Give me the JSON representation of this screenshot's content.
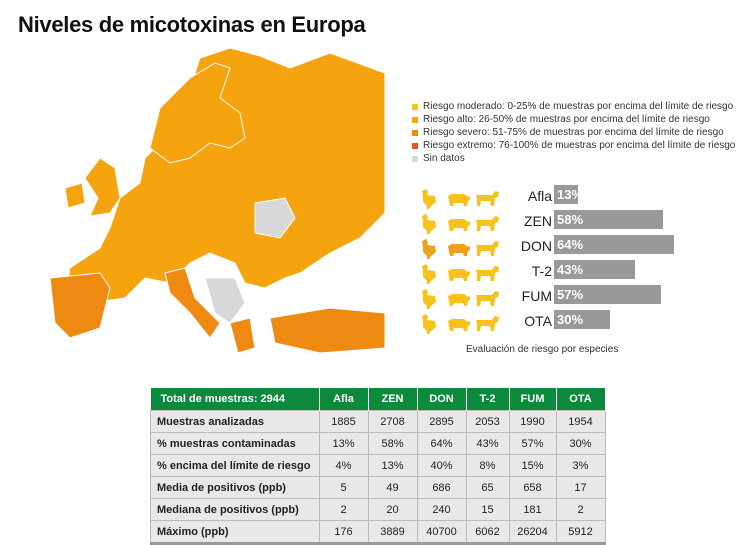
{
  "title": "Niveles de micotoxinas en Europa",
  "colors": {
    "moderate": "#f5c518",
    "high": "#f5a30f",
    "severe": "#ee8a12",
    "extreme": "#e2551a",
    "nodata": "#d8d8d8",
    "bar": "#999999",
    "header": "#0b8a3c"
  },
  "legend": [
    {
      "label": "Riesgo moderado: 0-25% de muestras por encima del límite de riesgo",
      "color": "#f5c518"
    },
    {
      "label": "Riesgo alto: 26-50% de muestras por encima del límite de riesgo",
      "color": "#f5a30f"
    },
    {
      "label": "Riesgo severo: 51-75% de muestras por encima del límite de riesgo",
      "color": "#ee8a12"
    },
    {
      "label": "Riesgo extremo: 76-100% de muestras por encima del límite de riesgo",
      "color": "#e2551a"
    },
    {
      "label": "Sin datos",
      "color": "#d8d8d8"
    }
  ],
  "chart_data": {
    "type": "bar",
    "title": "Evaluación de riesgo por especies",
    "categories": [
      "Afla",
      "ZEN",
      "DON",
      "T-2",
      "FUM",
      "OTA"
    ],
    "values": [
      13,
      58,
      64,
      43,
      57,
      30
    ],
    "labels": [
      "13%",
      "58%",
      "64%",
      "43%",
      "57%",
      "30%"
    ],
    "unit": "%",
    "species_icons": [
      "chicken-icon",
      "pig-icon",
      "cow-icon"
    ],
    "species_risk": [
      [
        "moderate",
        "moderate",
        "moderate"
      ],
      [
        "moderate",
        "moderate",
        "moderate"
      ],
      [
        "high",
        "high",
        "moderate"
      ],
      [
        "moderate",
        "moderate",
        "moderate"
      ],
      [
        "moderate",
        "moderate",
        "moderate"
      ],
      [
        "moderate",
        "moderate",
        "moderate"
      ]
    ]
  },
  "caption": "Evaluación de riesgo por especies",
  "table": {
    "headers": [
      "Total de muestras: 2944",
      "Afla",
      "ZEN",
      "DON",
      "T-2",
      "FUM",
      "OTA"
    ],
    "rows": [
      [
        "Muestras analizadas",
        "1885",
        "2708",
        "2895",
        "2053",
        "1990",
        "1954"
      ],
      [
        "% muestras contaminadas",
        "13%",
        "58%",
        "64%",
        "43%",
        "57%",
        "30%"
      ],
      [
        "% encima del límite de riesgo",
        "4%",
        "13%",
        "40%",
        "8%",
        "15%",
        "3%"
      ],
      [
        "Media de positivos (ppb)",
        "5",
        "49",
        "686",
        "65",
        "658",
        "17"
      ],
      [
        "Mediana de positivos (ppb)",
        "2",
        "20",
        "240",
        "15",
        "181",
        "2"
      ],
      [
        "Máximo (ppb)",
        "176",
        "3889",
        "40700",
        "6062",
        "26204",
        "5912"
      ]
    ]
  }
}
